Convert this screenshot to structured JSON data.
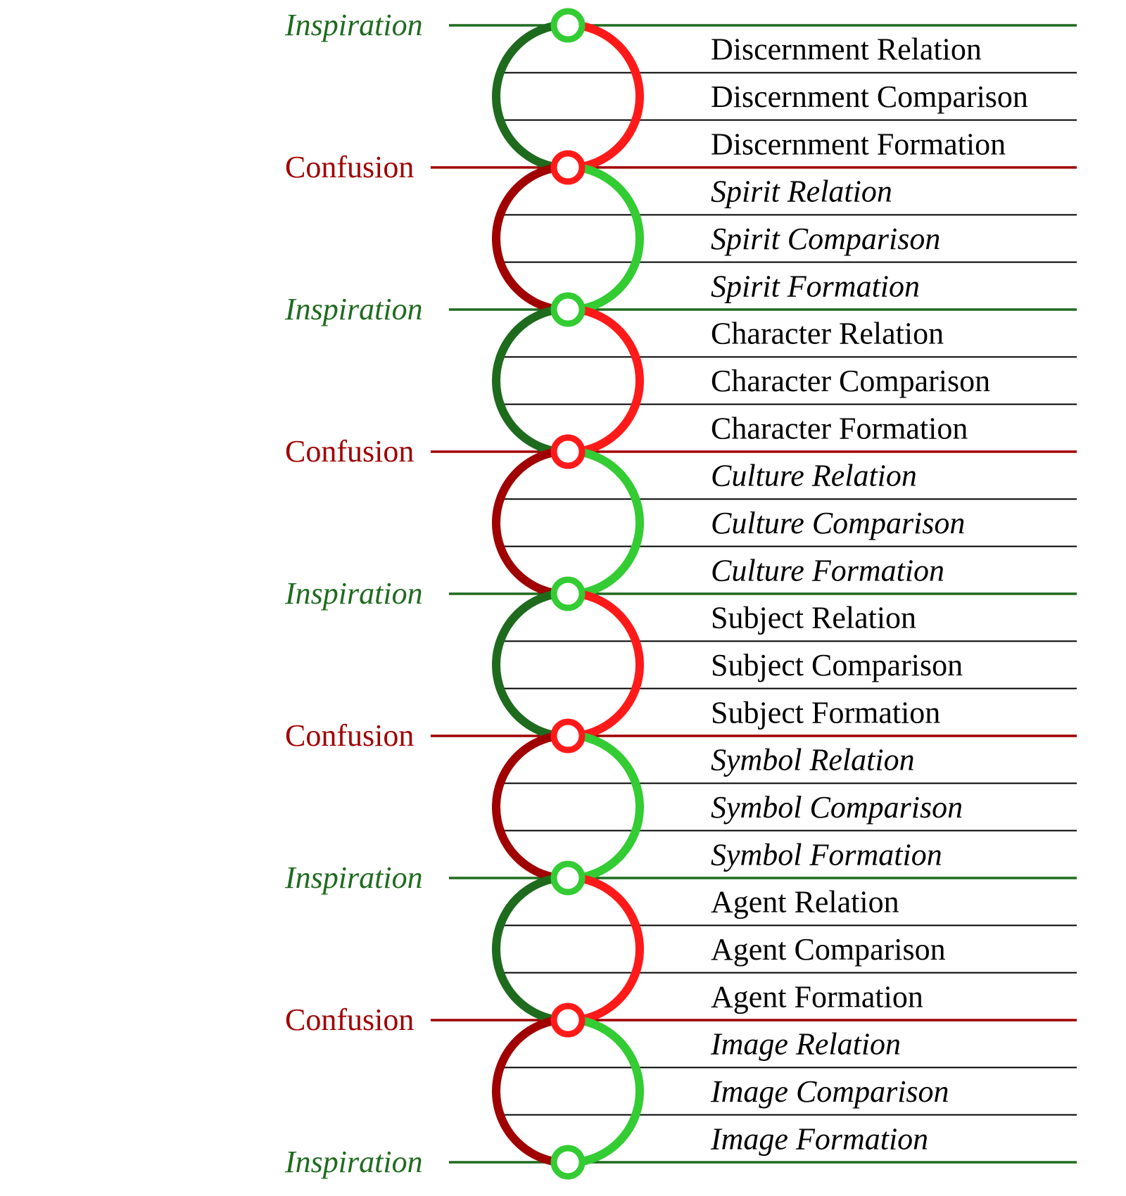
{
  "colors": {
    "inspiration_text": "#1f6b1f",
    "inspiration_line": "#1f6b1f",
    "confusion_text": "#a00000",
    "confusion_line": "#a00000",
    "dark_green": "#1e6b1e",
    "light_green": "#33cc33",
    "dark_red": "#a00000",
    "light_red": "#ff1a1a",
    "divider": "#000000"
  },
  "stages": [
    {
      "label": "Inspiration",
      "type": "inspiration"
    },
    {
      "label": "Confusion",
      "type": "confusion"
    },
    {
      "label": "Inspiration",
      "type": "inspiration"
    },
    {
      "label": "Confusion",
      "type": "confusion"
    },
    {
      "label": "Inspiration",
      "type": "inspiration"
    },
    {
      "label": "Confusion",
      "type": "confusion"
    },
    {
      "label": "Inspiration",
      "type": "inspiration"
    },
    {
      "label": "Confusion",
      "type": "confusion"
    },
    {
      "label": "Inspiration",
      "type": "inspiration"
    }
  ],
  "segments": [
    {
      "italic": false,
      "rows": [
        "Discernment Relation",
        "Discernment Comparison",
        "Discernment Formation"
      ]
    },
    {
      "italic": true,
      "rows": [
        "Spirit Relation",
        "Spirit Comparison",
        "Spirit Formation"
      ]
    },
    {
      "italic": false,
      "rows": [
        "Character Relation",
        "Character Comparison",
        "Character Formation"
      ]
    },
    {
      "italic": true,
      "rows": [
        "Culture Relation",
        "Culture Comparison",
        "Culture Formation"
      ]
    },
    {
      "italic": false,
      "rows": [
        "Subject Relation",
        "Subject Comparison",
        "Subject Formation"
      ]
    },
    {
      "italic": true,
      "rows": [
        "Symbol Relation",
        "Symbol Comparison",
        "Symbol Formation"
      ]
    },
    {
      "italic": false,
      "rows": [
        "Agent Relation",
        "Agent Comparison",
        "Agent Formation"
      ]
    },
    {
      "italic": true,
      "rows": [
        "Image Relation",
        "Image Comparison",
        "Image Formation"
      ]
    }
  ]
}
